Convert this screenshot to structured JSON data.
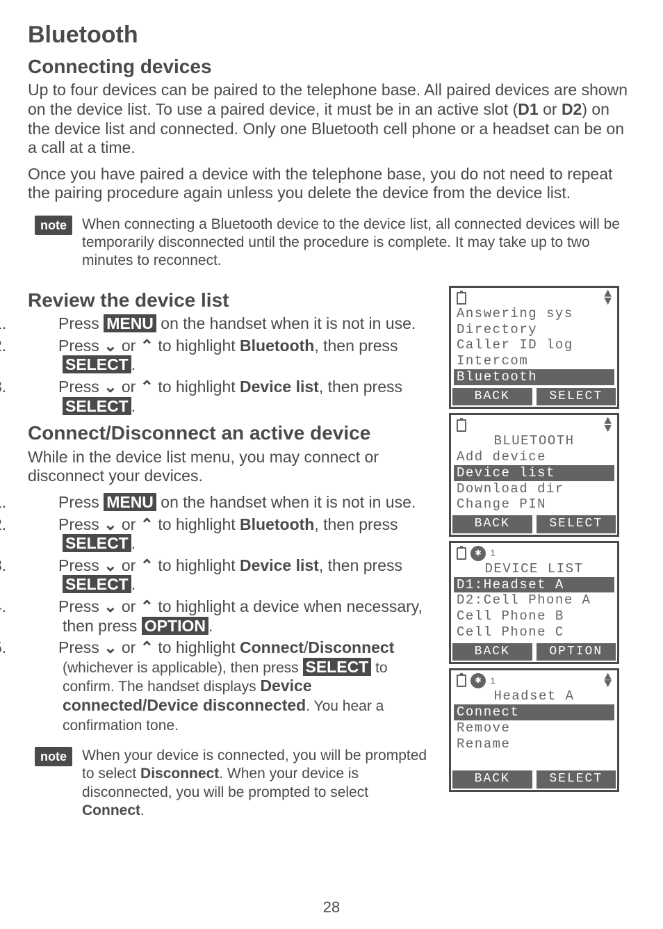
{
  "title": "Bluetooth",
  "section1_heading": "Connecting devices",
  "para1": "Up to four devices can be paired to the telephone base. All paired devices are shown on the device list. To use a paired device, it must be in an active slot (",
  "para1_b1": "D1",
  "para1_mid": " or ",
  "para1_b2": "D2",
  "para1_end": ") on the device list and connected. Only one Bluetooth cell phone or a headset can be on a call at a time.",
  "para2": "Once you have paired a device with the telephone base, you do not need to repeat the pairing procedure again unless you delete the device from the device list.",
  "note_label": "note",
  "note1": "When connecting a Bluetooth device to the device list, all connected devices will be temporarily disconnected until the procedure is complete. It may take up to two minutes to reconnect.",
  "section2_heading": "Review the device list",
  "steps_a": {
    "s1_pre": "Press ",
    "s1_btn": "MENU",
    "s1_post": " on the handset when it is not in use.",
    "s2_pre": "Press ",
    "s2_mid": " or ",
    "s2_post": " to highlight ",
    "s2_b": "Bluetooth",
    "s2_pp": ", then press ",
    "s2_btn": "SELECT",
    "s2_end": ".",
    "s3_pre": "Press ",
    "s3_mid": " or ",
    "s3_post": " to highlight ",
    "s3_b": "Device list",
    "s3_pp": ", then press ",
    "s3_btn": "SELECT",
    "s3_end": "."
  },
  "section3_heading": "Connect/Disconnect an active device",
  "para3": "While in the device list menu, you may connect or disconnect your devices.",
  "steps_b": {
    "s1_pre": "Press ",
    "s1_btn": "MENU",
    "s1_post": " on the handset when it is not in use.",
    "s2_pre": "Press ",
    "s2_mid": " or ",
    "s2_post": " to highlight ",
    "s2_b": "Bluetooth",
    "s2_pp": ", then press ",
    "s2_btn": "SELECT",
    "s2_end": ".",
    "s3_pre": "Press ",
    "s3_mid": " or ",
    "s3_post": " to highlight ",
    "s3_b": "Device list",
    "s3_pp": ", then press ",
    "s3_btn": "SELECT",
    "s3_end": ".",
    "s4_pre": "Press ",
    "s4_mid": " or ",
    "s4_post": " to highlight a device when necessary, then press ",
    "s4_btn": "OPTION",
    "s4_end": ".",
    "s5_pre": "Press ",
    "s5_mid": " or ",
    "s5_post": " to highlight ",
    "s5_b1": "Connect",
    "s5_sep": "/",
    "s5_b2": "Disconnect",
    "s5_sub_pre": " (whichever is applicable), then press ",
    "s5_btn": "SELECT",
    "s5_sub_mid": " to confirm. The handset displays ",
    "s5_b3": "Device connected/Device disconnected",
    "s5_sub_end": ". You hear a confirmation tone."
  },
  "note2_pre": "When your device is connected, you will be prompted to select ",
  "note2_b1": "Disconnect",
  "note2_mid": ". When your device is disconnected, you will be prompted to select ",
  "note2_b2": "Connect",
  "note2_end": ".",
  "page_number": "28",
  "screens": {
    "s1": {
      "l1": "Answering sys",
      "l2": "Directory",
      "l3": "Caller ID log",
      "l4": "Intercom",
      "l5": "Bluetooth",
      "sk1": "BACK",
      "sk2": "SELECT"
    },
    "s2": {
      "title": "BLUETOOTH",
      "l1": "Add device",
      "l2": "Device list",
      "l3": "Download dir",
      "l4": "Change PIN",
      "sk1": "BACK",
      "sk2": "SELECT"
    },
    "s3": {
      "title": "DEVICE LIST",
      "l1": "D1:Headset A",
      "l2": "D2:Cell Phone A",
      "l3": "Cell Phone B",
      "l4": "Cell Phone C",
      "sk1": "BACK",
      "sk2": "OPTION"
    },
    "s4": {
      "title": "Headset A",
      "l1": "Connect",
      "l2": "Remove",
      "l3": "Rename",
      "sk1": "BACK",
      "sk2": "SELECT"
    }
  }
}
